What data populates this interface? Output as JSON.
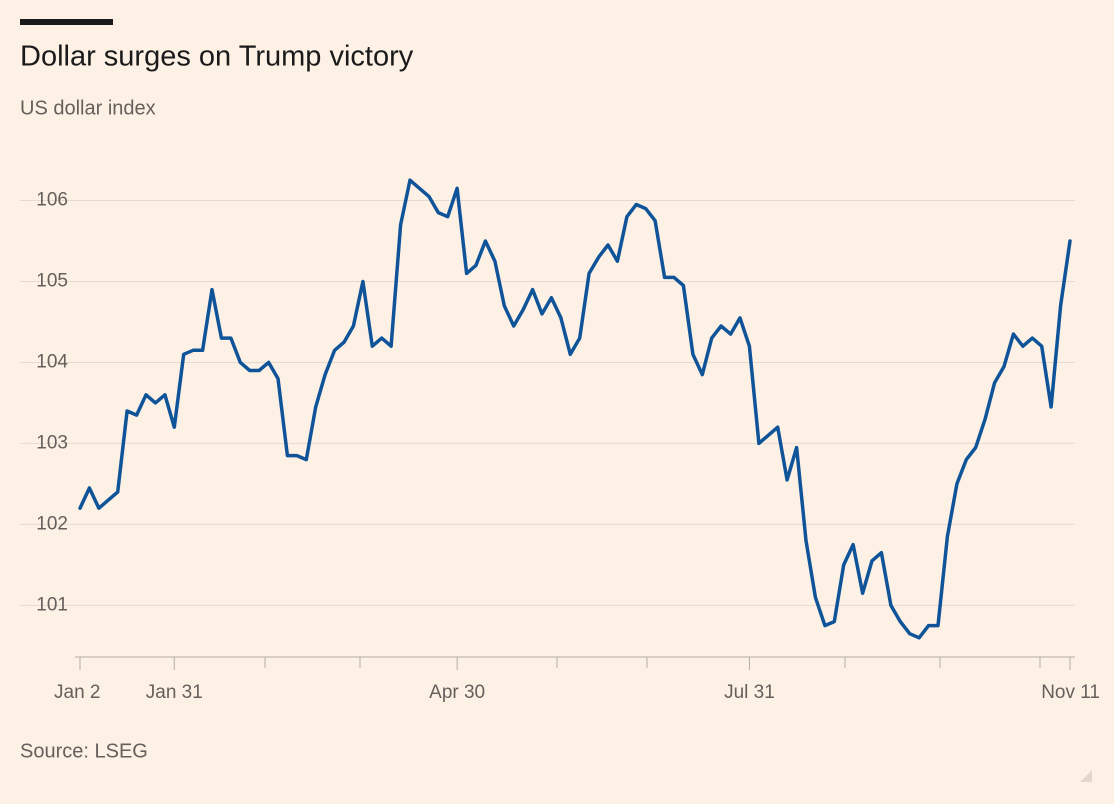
{
  "chart_data": {
    "type": "line",
    "title": "Dollar surges on Trump victory",
    "subtitle": "US dollar index",
    "source": "Source: LSEG",
    "categories": [
      "Jan 2",
      null,
      null,
      null,
      null,
      null,
      null,
      null,
      null,
      null,
      "Jan 31",
      null,
      null,
      null,
      null,
      null,
      null,
      null,
      null,
      null,
      null,
      null,
      null,
      null,
      null,
      null,
      null,
      null,
      null,
      null,
      null,
      null,
      null,
      null,
      null,
      null,
      null,
      null,
      null,
      null,
      "Apr 30",
      null,
      null,
      null,
      null,
      null,
      null,
      null,
      null,
      null,
      null,
      null,
      null,
      null,
      null,
      null,
      null,
      null,
      null,
      null,
      null,
      null,
      null,
      null,
      null,
      null,
      null,
      null,
      null,
      null,
      null,
      "Jul 31",
      null,
      null,
      null,
      null,
      null,
      null,
      null,
      null,
      null,
      null,
      null,
      null,
      null,
      null,
      null,
      null,
      null,
      null,
      null,
      null,
      null,
      null,
      null,
      null,
      null,
      null,
      null,
      null,
      null,
      null,
      null,
      null,
      null,
      "Nov 11"
    ],
    "values": [
      102.2,
      102.45,
      102.2,
      102.3,
      102.4,
      103.4,
      103.35,
      103.6,
      103.5,
      103.6,
      103.2,
      104.1,
      104.15,
      104.15,
      104.9,
      104.3,
      104.3,
      104.0,
      103.9,
      103.9,
      104.0,
      103.8,
      102.85,
      102.85,
      102.8,
      103.45,
      103.85,
      104.15,
      104.25,
      104.45,
      105.0,
      104.2,
      104.3,
      104.2,
      105.7,
      106.25,
      106.15,
      106.05,
      105.85,
      105.8,
      106.15,
      105.1,
      105.2,
      105.5,
      105.25,
      104.7,
      104.45,
      104.65,
      104.9,
      104.6,
      104.8,
      104.55,
      104.1,
      104.3,
      105.1,
      105.3,
      105.45,
      105.25,
      105.8,
      105.95,
      105.9,
      105.75,
      105.05,
      105.05,
      104.95,
      104.1,
      103.85,
      104.3,
      104.45,
      104.35,
      104.55,
      104.2,
      103.0,
      103.1,
      103.2,
      102.55,
      102.95,
      101.8,
      101.1,
      100.75,
      100.8,
      101.5,
      101.75,
      101.15,
      101.55,
      101.65,
      101.0,
      100.8,
      100.65,
      100.6,
      100.75,
      100.75,
      101.85,
      102.5,
      102.8,
      102.95,
      103.3,
      103.75,
      103.95,
      104.35,
      104.2,
      104.3,
      104.2,
      103.45,
      104.7,
      105.5
    ],
    "color": "#0f5499",
    "ylim": [
      100.35,
      106.5
    ],
    "yticks": [
      101,
      102,
      103,
      104,
      105,
      106
    ],
    "grid": true
  }
}
